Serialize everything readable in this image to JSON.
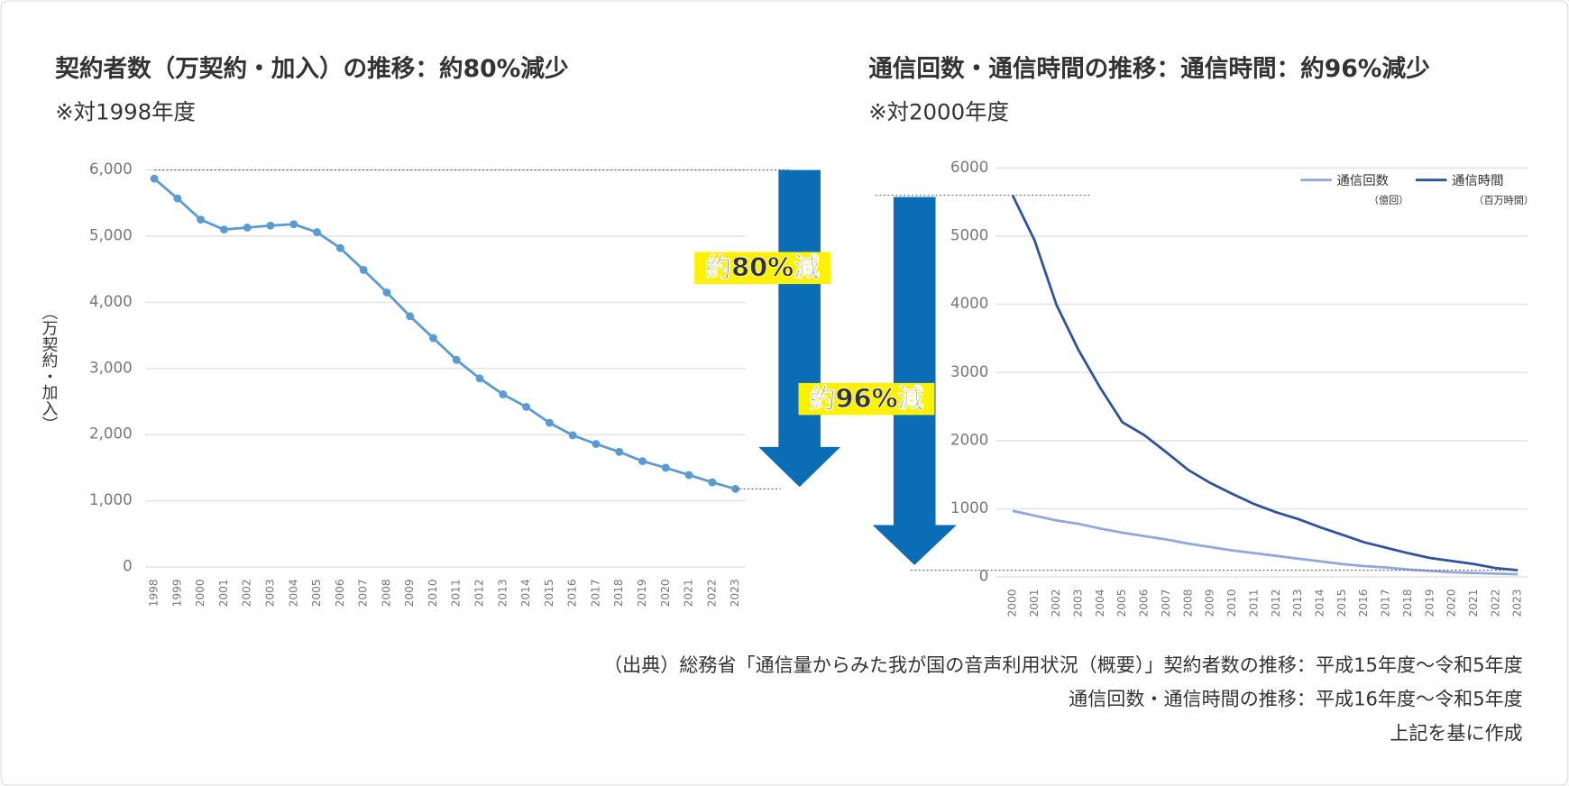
{
  "chart_data": [
    {
      "type": "line",
      "title": "契約者数（万契約・加入）の推移：約80%減少",
      "subtitle": "※対1998年度",
      "y_label": "（万契約・加入）",
      "categories": [
        "1998",
        "1999",
        "2000",
        "2001",
        "2002",
        "2003",
        "2004",
        "2005",
        "2006",
        "2007",
        "2008",
        "2009",
        "2010",
        "2011",
        "2012",
        "2013",
        "2014",
        "2015",
        "2016",
        "2017",
        "2018",
        "2019",
        "2020",
        "2021",
        "2022",
        "2023"
      ],
      "values": [
        5870,
        5570,
        5250,
        5100,
        5130,
        5160,
        5180,
        5060,
        4820,
        4490,
        4150,
        3790,
        3460,
        3130,
        2850,
        2610,
        2420,
        2180,
        1990,
        1860,
        1740,
        1600,
        1500,
        1390,
        1280,
        1180
      ],
      "color": "#5b9bd5",
      "markers": true,
      "ylim": [
        0,
        6000
      ],
      "yticks": [
        0,
        {
          "value": 1000,
          "label": "1,000"
        },
        {
          "value": 2000,
          "label": "2,000"
        },
        {
          "value": 3000,
          "label": "3,000"
        },
        {
          "value": 4000,
          "label": "4,000"
        },
        {
          "value": 5000,
          "label": "5,000"
        },
        {
          "value": 6000,
          "label": "6,000"
        }
      ],
      "grid": true,
      "annotation": "約80%減"
    },
    {
      "type": "line",
      "title": "通信回数・通信時間の推移：通信時間：約96%減少",
      "subtitle": "※対2000年度",
      "categories": [
        "2000",
        "2001",
        "2002",
        "2003",
        "2004",
        "2005",
        "2006",
        "2007",
        "2008",
        "2009",
        "2010",
        "2011",
        "2012",
        "2013",
        "2014",
        "2015",
        "2016",
        "2017",
        "2018",
        "2019",
        "2020",
        "2021",
        "2022",
        "2023"
      ],
      "series": [
        {
          "name": "通信回数",
          "unit": "（億回）",
          "color": "#8fa9dc",
          "values": [
            970,
            900,
            830,
            780,
            710,
            650,
            600,
            550,
            490,
            440,
            390,
            350,
            310,
            270,
            230,
            190,
            160,
            140,
            110,
            90,
            70,
            60,
            50,
            40
          ]
        },
        {
          "name": "通信時間",
          "unit": "（百万時間）",
          "color": "#2f52a0",
          "values": [
            5600,
            4940,
            3990,
            3330,
            2770,
            2270,
            2080,
            1830,
            1570,
            1380,
            1220,
            1070,
            950,
            850,
            730,
            620,
            510,
            430,
            350,
            280,
            235,
            190,
            130,
            100
          ]
        }
      ],
      "markers": false,
      "ylim": [
        0,
        6000
      ],
      "yticks": [
        0,
        1000,
        2000,
        3000,
        4000,
        5000,
        6000
      ],
      "grid": true,
      "legend": "top-right",
      "annotation": "約96%減"
    }
  ],
  "source": [
    "（出典）総務省「通信量からみた我が国の音声利用状況（概要）」契約者数の推移：平成15年度～令和5年度",
    "通信回数・通信時間の推移：平成16年度～令和5年度",
    "上記を基に作成"
  ]
}
